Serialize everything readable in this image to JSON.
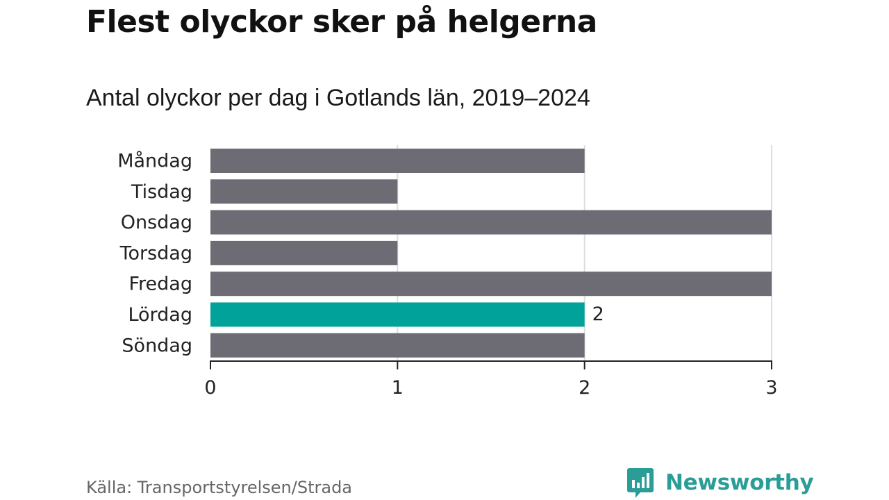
{
  "header": {
    "title": "Flest olyckor sker på helgerna",
    "subtitle": "Antal olyckor per dag i Gotlands län, 2019–2024"
  },
  "footer": {
    "source": "Källa: Transportstyrelsen/Strada",
    "brand": "Newsworthy"
  },
  "colors": {
    "bar_default": "#6d6c74",
    "bar_highlight": "#00a29a",
    "brand": "#2a9d96",
    "grid": "#dddddd",
    "axis": "#222222"
  },
  "chart_data": {
    "type": "bar",
    "orientation": "horizontal",
    "categories": [
      "Måndag",
      "Tisdag",
      "Onsdag",
      "Torsdag",
      "Fredag",
      "Lördag",
      "Söndag"
    ],
    "values": [
      2,
      1,
      3,
      1,
      3,
      2,
      2
    ],
    "highlight_category": "Lördag",
    "data_labels": [
      {
        "category": "Lördag",
        "text": "2"
      }
    ],
    "xlim": [
      0,
      3
    ],
    "xticks": [
      0,
      1,
      2,
      3
    ],
    "grid": true,
    "legend": "none",
    "xlabel": "",
    "ylabel": ""
  }
}
